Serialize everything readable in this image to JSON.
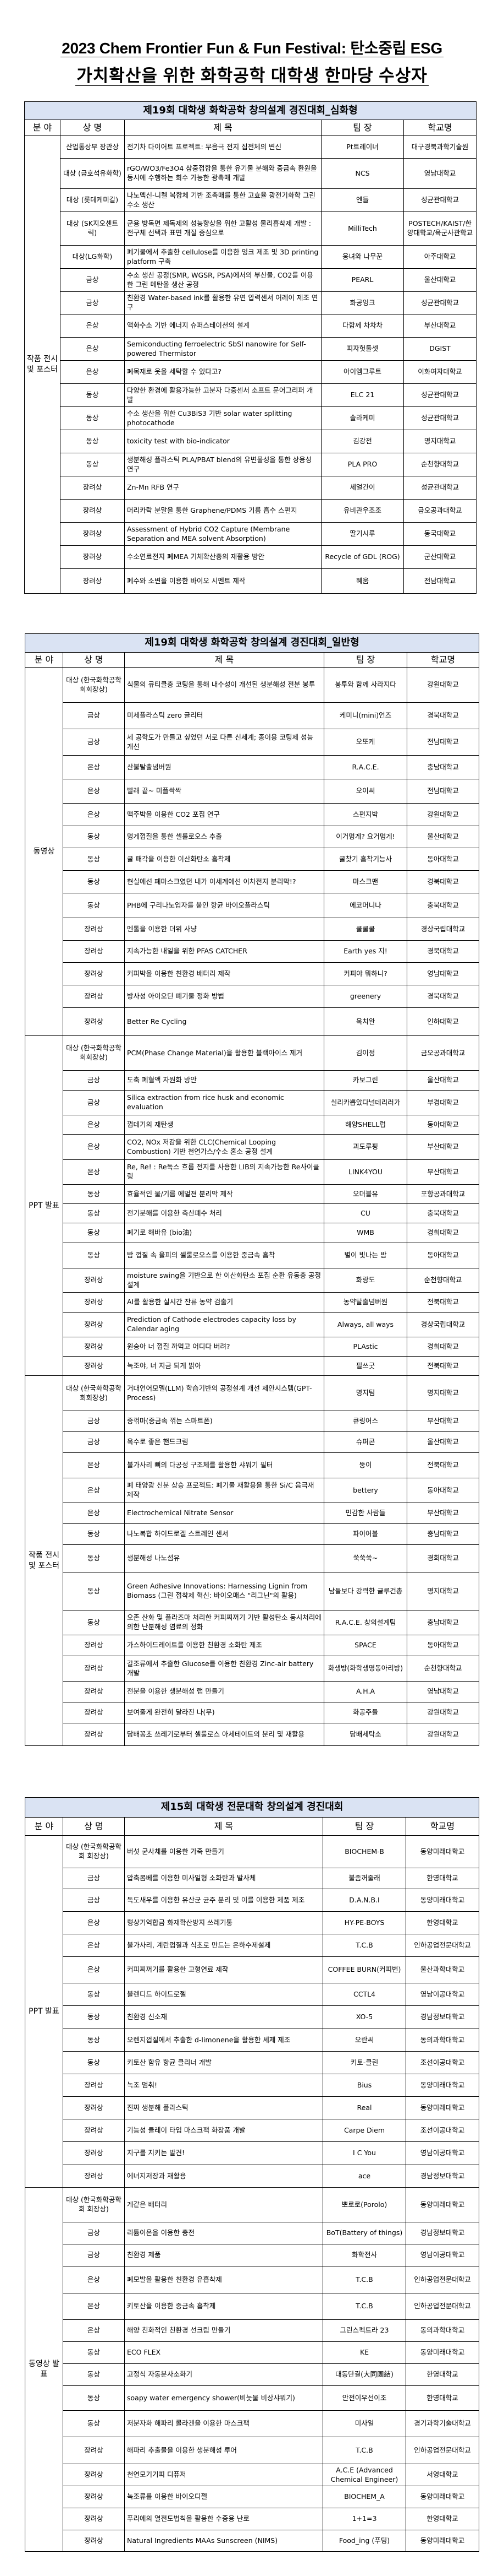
{
  "title": {
    "line1": "2023 Chem Frontier Fun & Fun Festival: 탄소중립 ESG",
    "line2": "가치확산을 위한 화학공학 대학생 한마당 수상자"
  },
  "tables": [
    {
      "heading": "제19회 대학생 화학공학 창의설계 경진대회_심화형",
      "columns": [
        "분 야",
        "상 명",
        "제      목",
        "팀 장",
        "학교명"
      ],
      "sections": [
        {
          "field": "작품 전시 및 포스터",
          "rows": [
            {
              "award": "산업통상부 장관상",
              "title": "전기차 다이어트 프로젝트: 무음극 전지 집전체의 변신",
              "team": "Pt트레이너",
              "school": "대구경북과학기술원"
            },
            {
              "award": "대상 (금호석유화학)",
              "title": "rGO/WO3/Fe3O4 삼중접합을 통한 유기물 분해와 중금속 환원을 동시에 수행하는 회수 가능한 광촉매 개발",
              "team": "NCS",
              "school": "영남대학교"
            },
            {
              "award": "대상 (롯데케미칼)",
              "title": "나노멕신-니켈 복합체 기반 조촉매를 통한 고효율 광전기화학 그린 수소 생산",
              "team": "엔들",
              "school": "성균관대학교"
            },
            {
              "award": "대상 (SK지오센트릭)",
              "title": "군용 방독면 제독제의 성능향상을 위한 고활성 물리흡착제 개발 : 전구체 선택과 표면 개질 중심으로",
              "team": "MilliTech",
              "school": "POSTECH/KAIST/한양대학교/육군사관학교"
            },
            {
              "award": "대상(LG화학)",
              "title": "폐기물에서 추출한 cellulose를 이용한 잉크 제조 및 3D printing platform 구축",
              "team": "웅녀와 나무꾼",
              "school": "아주대학교"
            },
            {
              "award": "금상",
              "title": "수소 생산 공정(SMR, WGSR, PSA)에서의 부산물, CO2를 이용한 그린 메탄올 생산 공정",
              "team": "PEARL",
              "school": "울산대학교"
            },
            {
              "award": "금상",
              "title": "친환경 Water-based ink를 활용한 유연 압력센서 어레이 제조 연구",
              "team": "화공잉크",
              "school": "성균관대학교"
            },
            {
              "award": "은상",
              "title": "액화수소 기반 에너지 슈퍼스테이션의 설계",
              "team": "다함께 차차차",
              "school": "부산대학교"
            },
            {
              "award": "은상",
              "title": "Semiconducting ferroelectric SbSI nanowire for Self-powered Thermistor",
              "team": "피자헛둘셋",
              "school": "DGIST"
            },
            {
              "award": "은상",
              "title": "폐목재로 옷을 세탁할 수 있다고?",
              "team": "아이엠그루트",
              "school": "이화여자대학교"
            },
            {
              "award": "동상",
              "title": "다양한 환경에 활용가능한 고분자 다중센서 소프트 문어그리퍼 개발",
              "team": "ELC 21",
              "school": "성균관대학교"
            },
            {
              "award": "동상",
              "title": "수소 생산을 위한 Cu3BiS3 기반 solar water splitting photocathode",
              "team": "솔라케미",
              "school": "성균관대학교"
            },
            {
              "award": "동상",
              "title": "toxicity test with bio-indicator",
              "team": "김강전",
              "school": "명지대학교"
            },
            {
              "award": "동상",
              "title": "생분해성 플라스틱 PLA/PBAT blend의 유변물성을 통한 상용성 연구",
              "team": "PLA PRO",
              "school": "순천향대학교"
            },
            {
              "award": "장려상",
              "title": "Zn-Mn RFB 연구",
              "team": "세얼간이",
              "school": "성균관대학교"
            },
            {
              "award": "장려상",
              "title": "머리카락 분말을 통한 Graphene/PDMS 기름 흡수 스펀지",
              "team": "유비관우조조",
              "school": "금오공과대학교"
            },
            {
              "award": "장려상",
              "title": "Assessment of Hybrid CO2 Capture (Membrane Separation and MEA solvent Absorption)",
              "team": "딸기시루",
              "school": "동국대학교"
            },
            {
              "award": "장려상",
              "title": "수소연료전지 폐MEA 기체확산층의 재활용 방안",
              "team": "Recycle of GDL (ROG)",
              "school": "군산대학교"
            },
            {
              "award": "장려상",
              "title": "폐수와 소변을 이용한 바이오 시멘트 제작",
              "team": "혜움",
              "school": "전남대학교"
            }
          ]
        }
      ]
    },
    {
      "heading": "제19회 대학생 화학공학 창의설계 경진대회_일반형",
      "columns": [
        "분 야",
        "상 명",
        "제      목",
        "팀 장",
        "학교명"
      ],
      "sections": [
        {
          "field": "동영상",
          "rows": [
            {
              "award": "대상 (한국화학공학회회장상)",
              "title": "식물의 큐티클층 코팅을 통해 내수성이 개선된 생분해성 전분 봉투",
              "team": "봉투와 함께 사라지다",
              "school": "강원대학교"
            },
            {
              "award": "금상",
              "title": "미세플라스틱 zero 글리터",
              "team": "케미니(mini)언즈",
              "school": "경북대학교"
            },
            {
              "award": "금상",
              "title": "세 공학도가 만들고 싶었던 서로 다른 신세계; 종이용 코팅제 성능 개선",
              "team": "오또케",
              "school": "전남대학교"
            },
            {
              "award": "은상",
              "title": "산불탈출넘버원",
              "team": "R.A.C.E.",
              "school": "충남대학교"
            },
            {
              "award": "은상",
              "title": "빨래 끝~ 미플싹싹",
              "team": "오이씨",
              "school": "전남대학교"
            },
            {
              "award": "은상",
              "title": "맥주박을 이용한 CO2 포집 연구",
              "team": "스펀지박",
              "school": "강원대학교"
            },
            {
              "award": "동상",
              "title": "멍게껍질을 통한 셀룰로오스 추출",
              "team": "이거멍게? 요거멍게!",
              "school": "울산대학교"
            },
            {
              "award": "동상",
              "title": "굴 패각을 이용한 이산화탄소 흡착제",
              "team": "굴찾기 흡착기능사",
              "school": "동아대학교"
            },
            {
              "award": "동상",
              "title": "현실에선 폐마스크였던 내가 이세계에선 이차전지 분리막!?",
              "team": "마스크맨",
              "school": "경북대학교"
            },
            {
              "award": "동상",
              "title": "PHB에 구리나노입자를 붙인 항균 바이오플라스틱",
              "team": "에코머니나",
              "school": "충북대학교"
            },
            {
              "award": "장려상",
              "title": "멘톨을 이용한 더위 사냥",
              "team": "쿨쿨쿨",
              "school": "경상국립대학교"
            },
            {
              "award": "장려상",
              "title": "지속가능한 내일을 위한 PFAS CATCHER",
              "team": "Earth yes 지!",
              "school": "경북대학교"
            },
            {
              "award": "장려상",
              "title": "커피박을 이용한 친환경 배터리 제작",
              "team": "커피야 뭐하니?",
              "school": "영남대학교"
            },
            {
              "award": "장려상",
              "title": "방사성 아이오딘 폐기물 정화 방법",
              "team": "greenery",
              "school": "경북대학교"
            },
            {
              "award": "장려상",
              "title": "Better Re Cycling",
              "team": "옥치완",
              "school": "인하대학교"
            }
          ]
        },
        {
          "field": "PPT 발표",
          "rows": [
            {
              "award": "대상 (한국화학공학회회장상)",
              "title": "PCM(Phase Change Material)을 활용한 블랙아이스 제거",
              "team": "김이정",
              "school": "금오공과대학교"
            },
            {
              "award": "금상",
              "title": "도축 폐혈액 자원화 방안",
              "team": "카보그린",
              "school": "울산대학교"
            },
            {
              "award": "금상",
              "title": "Silica extraction from rice husk and economic evaluation",
              "team": "실리카뽑았다널데리러가",
              "school": "부경대학교"
            },
            {
              "award": "은상",
              "title": "껍데기의 재탄생",
              "team": "해양SHELL럽",
              "school": "동아대학교"
            },
            {
              "award": "은상",
              "title": "CO2, NOx 저감을 위한 CLC(Chemical Looping Combustion) 기반 천연가스/수소 혼소 공정 설계",
              "team": "괴도루핑",
              "school": "부산대학교"
            },
            {
              "award": "은상",
              "title": "Re, Re! : Re독스 흐름 전지를 사용한 LIB의 지속가능한 Re사이클링",
              "team": "LINK4YOU",
              "school": "부산대학교"
            },
            {
              "award": "동상",
              "title": "효율적인 물/기름 에멀젼 분리막 제작",
              "team": "오더블유",
              "school": "포항공과대학교"
            },
            {
              "award": "동상",
              "title": "전기분해를 이용한 축산폐수 처리",
              "team": "CU",
              "school": "충북대학교"
            },
            {
              "award": "동상",
              "title": "폐기로 해바유 (bio油)",
              "team": "WMB",
              "school": "경희대학교"
            },
            {
              "award": "동상",
              "title": "밤 껍질 속 율피의 셀룰로오스를 이용한 중금속 흡착",
              "team": "별이 빛나는 밤",
              "school": "동아대학교"
            },
            {
              "award": "장려상",
              "title": "moisture swing을 기반으로 한 이산화탄소 포집 순환 유동층 공정 설계",
              "team": "화랑도",
              "school": "순천향대학교"
            },
            {
              "award": "장려상",
              "title": "AI를 활용한 실시간 잔류 농약 검출기",
              "team": "농약탈출넘버원",
              "school": "전북대학교"
            },
            {
              "award": "장려상",
              "title": "Prediction of Cathode electrodes capacity loss  by Calendar aging",
              "team": "Always, all ways",
              "school": "경상국립대학교"
            },
            {
              "award": "장려상",
              "title": "원숭아 너 껍질 까먹고 어디다 버려?",
              "team": "PLAstic",
              "school": "경희대학교"
            },
            {
              "award": "장려상",
              "title": "녹조야, 너 지금 되게 밝아",
              "team": "필쓰굿",
              "school": "전북대학교"
            }
          ]
        },
        {
          "field": "작품 전시 및 포스터",
          "rows": [
            {
              "award": "대상 (한국화학공학회회장상)",
              "title": "거대언어모델(LLM) 학습기반의 공정설계 개선 제안시스템(GPT-Process)",
              "team": "명지팀",
              "school": "명지대학교"
            },
            {
              "award": "금상",
              "title": "중꺾마(중금속 꺾는 스마트폰)",
              "team": "큐링어스",
              "school": "부산대학교"
            },
            {
              "award": "금상",
              "title": "옥수로 좋은 핸드크림",
              "team": "슈퍼콘",
              "school": "울산대학교"
            },
            {
              "award": "은상",
              "title": "불가사리 뼈의 다공성 구조체를 활용한 샤워기 필터",
              "team": "뚱이",
              "school": "전북대학교"
            },
            {
              "award": "은상",
              "title": "폐 태양광 신분 상승 프로젝트: 폐기물 재활용을 통한 Si/C 음극재 제작",
              "team": "bettery",
              "school": "동아대학교"
            },
            {
              "award": "은상",
              "title": "Electrochemical Nitrate Sensor",
              "team": "민감한 사람들",
              "school": "부산대학교"
            },
            {
              "award": "동상",
              "title": "나노복합 하이드로겔 스트레인 센서",
              "team": "파이어볼",
              "school": "충남대학교"
            },
            {
              "award": "동상",
              "title": "생분해성 나노섬유",
              "team": "쑥쑥쑥~",
              "school": "경희대학교"
            },
            {
              "award": "동상",
              "title": "Green Adhesive Innovations: Harnessing Lignin from Biomass (그린 접착제 혁신: 바이오매스 \"리그닌\"의 활용)",
              "team": "남들보다 강력한 글루건총",
              "school": "명지대학교"
            },
            {
              "award": "동상",
              "title": "오존 산화 및 플라즈마 처리한 커피찌꺼기 기반 활성탄소 동시처리에 의한 난분해성 염료의 정화",
              "team": "R.A.C.E. 창의설계팀",
              "school": "충남대학교"
            },
            {
              "award": "장려상",
              "title": "가스하이드레이트를 이용한 친환경 소화탄 제조",
              "team": "SPACE",
              "school": "동아대학교"
            },
            {
              "award": "장려상",
              "title": "갈조류에서 추출한 Glucose를 이용한 친환경 Zinc-air battery 개발",
              "team": "화생방(화학생명동아리방)",
              "school": "순천향대학교"
            },
            {
              "award": "장려상",
              "title": "전분을 이용한 생분해성 랩 만들기",
              "team": "A.H.A",
              "school": "영남대학교"
            },
            {
              "award": "장려상",
              "title": "보여줄게 완전히 달라진 나(무)",
              "team": "화공주들",
              "school": "강원대학교"
            },
            {
              "award": "장려상",
              "title": "담배꽁초 쓰레기로부터 셀룰로스 아세테이트의 분리 및 재활용",
              "team": "담배세탁소",
              "school": "강원대학교"
            }
          ]
        }
      ]
    },
    {
      "heading": "제15회 대학생 전문대학 창의설계 경진대회",
      "columns": [
        "분 야",
        "상 명",
        "제      목",
        "팀  장",
        "학교명"
      ],
      "sections": [
        {
          "field": "PPT 발표",
          "rows": [
            {
              "award": "대상 (한국화학공학회 회장상)",
              "title": "버섯 균사체를 이용한 가죽 만들기",
              "team": "BIOCHEM-B",
              "school": "동양미래대학교"
            },
            {
              "award": "금상",
              "title": "압축봄베를 이용한 미사일형 소화탄과 발사체",
              "team": "불좀꺼줄래",
              "school": "한영대학교"
            },
            {
              "award": "금상",
              "title": "독도새우를 이용한 유산균 균주 분리 및 이를 이용한 제품 제조",
              "team": "D.A.N.B.I",
              "school": "동양미래대학교"
            },
            {
              "award": "은상",
              "title": "형상기억합금 화재확산방지 쓰레기통",
              "team": "HY-PE-BOYS",
              "school": "한영대학교"
            },
            {
              "award": "은상",
              "title": "불가사리, 계란껍질과 식초로 만드는 은하수제설제",
              "team": "T.C.B",
              "school": "인하공업전문대학교"
            },
            {
              "award": "은상",
              "title": "커피찌꺼기를 활용한 고형연료 제작",
              "team": "COFFEE BURN(커피번)",
              "school": "울산과학대학교"
            },
            {
              "award": "동상",
              "title": "블렌디드 하이드로젤",
              "team": "CCTL4",
              "school": "영남이공대학교"
            },
            {
              "award": "동상",
              "title": "친환경 신소재",
              "team": "XO-5",
              "school": "경남정보대학교"
            },
            {
              "award": "동상",
              "title": "오렌지껍질에서 추출한 d-limonene을 활용한 세제 제조",
              "team": "오란씨",
              "school": "동의과학대학교"
            },
            {
              "award": "동상",
              "title": "키토산 함유 항균 클리너 개발",
              "team": "키토-클린",
              "school": "조선이공대학교"
            },
            {
              "award": "장려상",
              "title": "녹조 멈춰!",
              "team": "Bius",
              "school": "동양미래대학교"
            },
            {
              "award": "장려상",
              "title": "진짜 생분해 플라스틱",
              "team": "Real",
              "school": "동양미래대학교"
            },
            {
              "award": "장려상",
              "title": "기능성 클레이 타입 마스크팩 화장품 개발",
              "team": "Carpe Diem",
              "school": "조선이공대학교"
            },
            {
              "award": "장려상",
              "title": "지구를 지키는 발견!",
              "team": "I C You",
              "school": "영남이공대학교"
            },
            {
              "award": "장려상",
              "title": "에너지저장과 재활용",
              "team": "ace",
              "school": "경남정보대학교"
            }
          ]
        },
        {
          "field": "동영상 발표",
          "rows": [
            {
              "award": "대상 (한국화학공학회 회장상)",
              "title": "게같은 배터리",
              "team": "뽀로로(Porolo)",
              "school": "동양미래대학교"
            },
            {
              "award": "금상",
              "title": "리튬이온을 이용한 충전",
              "team": "BoT(Battery of things)",
              "school": "경남정보대학교"
            },
            {
              "award": "금상",
              "title": "친환경 제품",
              "team": "화학전사",
              "school": "영남이공대학교"
            },
            {
              "award": "은상",
              "title": "폐모발을 활용한 친환경 유흡착제",
              "team": "T.C.B",
              "school": "인하공업전문대학교"
            },
            {
              "award": "은상",
              "title": "키토산을 이용한 중금속 흡착제",
              "team": "T.C.B",
              "school": "인하공업전문대학교"
            },
            {
              "award": "은상",
              "title": "해양 친화적인 친환경 선크림 만들기",
              "team": "그린스펙트라 23",
              "school": "동의과학대학교"
            },
            {
              "award": "동상",
              "title": "ECO FLEX",
              "team": "KE",
              "school": "동양미래대학교"
            },
            {
              "award": "동상",
              "title": "고정식 자동분사소화기",
              "team": "대동단결(大同團結)",
              "school": "한영대학교"
            },
            {
              "award": "동상",
              "title": "soapy water emergency shower(비눗물 비상샤워기)",
              "team": "안전이우선이조",
              "school": "한영대학교"
            },
            {
              "award": "동상",
              "title": "저분자화 해파리 콜라겐을 이용한 마스크팩",
              "team": "미사일",
              "school": "경기과학기술대학교"
            },
            {
              "award": "장려상",
              "title": "해파리 추출물을 이용한 생분해성 루어",
              "team": "T.C.B",
              "school": "인하공업전문대학교"
            },
            {
              "award": "장려상",
              "title": "천연모기기피 디퓨저",
              "team": "A.C.E (Advanced Chemical Engineer)",
              "school": "서영대학교"
            },
            {
              "award": "장려상",
              "title": "녹조류를 이용한 바이오디젤",
              "team": "BIOCHEM_A",
              "school": "동양미래대학교"
            },
            {
              "award": "장려상",
              "title": "푸리에의 열전도법칙을 활용한 수중용 난로",
              "team": "1+1=3",
              "school": "한영대학교"
            },
            {
              "award": "장려상",
              "title": "Natural Ingredients MAAs Sunscreen (NIMS)",
              "team": "Food_ing (푸딩)",
              "school": "동양미래대학교"
            }
          ]
        }
      ]
    }
  ]
}
